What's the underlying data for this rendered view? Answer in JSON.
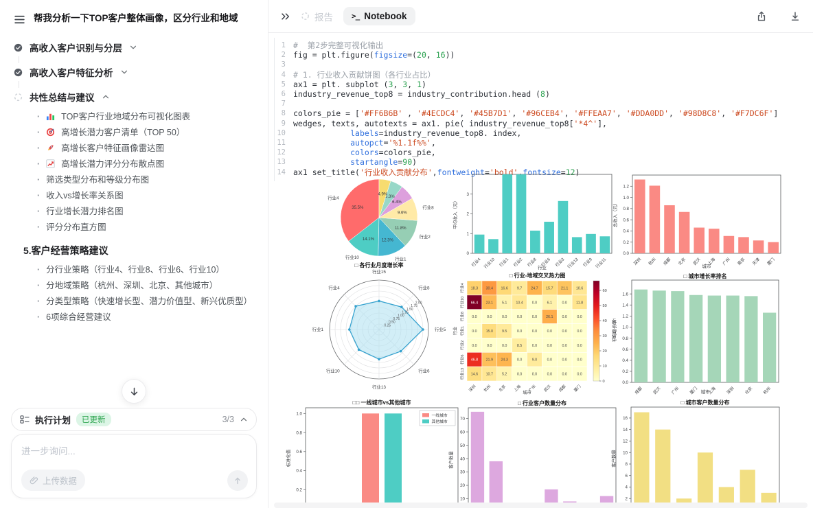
{
  "sidebar": {
    "title": "帮我分析一下TOP客户整体画像，区分行业和地域",
    "tasks": [
      {
        "label": "高收入客户识别与分层",
        "state": "done",
        "chevron": "down"
      },
      {
        "label": "高收入客户特征分析",
        "state": "done",
        "chevron": "down"
      },
      {
        "label": "共性总结与建议",
        "state": "running",
        "chevron": "up"
      }
    ],
    "bullets": [
      {
        "icon": "bar-chart-emoji",
        "text": "TOP客户行业地域分布可视化图表"
      },
      {
        "icon": "target-emoji",
        "text": "高增长潜力客户清单（TOP 50）"
      },
      {
        "icon": "rocket-emoji",
        "text": "高增长客户特征画像雷达图"
      },
      {
        "icon": "chart-up-emoji",
        "text": "高增长潜力评分分布散点图"
      },
      {
        "icon": "",
        "text": "筛选类型分布和等级分布图"
      },
      {
        "icon": "",
        "text": "收入vs增长率关系图"
      },
      {
        "icon": "",
        "text": "行业增长潜力排名图"
      },
      {
        "icon": "",
        "text": "评分分布直方图"
      }
    ],
    "section_heading": "5.客户经营策略建议",
    "strategy_bullets": [
      "分行业策略（行业4、行业8、行业6、行业10）",
      "分地域策略（杭州、深圳、北京、其他城市）",
      "分类型策略（快速增长型、潜力价值型、新兴优质型）",
      "6项综合经营建议"
    ],
    "plan_bar": {
      "label": "执行计划",
      "badge": "已更新",
      "progress": "3/3"
    },
    "composer": {
      "placeholder": "进一步询问...",
      "upload_label": "上传数据"
    }
  },
  "header": {
    "tab_report": "报告",
    "tab_notebook": "Notebook"
  },
  "code": {
    "lines": [
      [
        [
          "c",
          "#  第2步完整可视化输出"
        ]
      ],
      [
        [
          "t",
          "fig = plt.figure("
        ],
        [
          "k",
          "figsize"
        ],
        [
          "t",
          "=("
        ],
        [
          "n",
          "20"
        ],
        [
          "t",
          ", "
        ],
        [
          "n",
          "16"
        ],
        [
          "t",
          "))"
        ]
      ],
      [],
      [
        [
          "c",
          "# 1. 行业收入贡献饼图（各行业占比）"
        ]
      ],
      [
        [
          "t",
          "ax1 = plt. subplot ("
        ],
        [
          "n",
          "3"
        ],
        [
          "t",
          ", "
        ],
        [
          "n",
          "3"
        ],
        [
          "t",
          ", "
        ],
        [
          "n",
          "1"
        ],
        [
          "t",
          ")"
        ]
      ],
      [
        [
          "t",
          "industry_revenue_top8 = industry_contribution.head ("
        ],
        [
          "n",
          "8"
        ],
        [
          "t",
          ")"
        ]
      ],
      [],
      [
        [
          "t",
          "colors_pie = ["
        ],
        [
          "s",
          "'#FF6B6B'"
        ],
        [
          "t",
          " , "
        ],
        [
          "s",
          "'#4ECDC4'"
        ],
        [
          "t",
          ", "
        ],
        [
          "s",
          "'#45B7D1'"
        ],
        [
          "t",
          ", "
        ],
        [
          "s",
          "'#96CEB4'"
        ],
        [
          "t",
          ", "
        ],
        [
          "s",
          "'#FFEAA7'"
        ],
        [
          "t",
          ", "
        ],
        [
          "s",
          "'#DDA0DD'"
        ],
        [
          "t",
          ", "
        ],
        [
          "s",
          "'#98D8C8'"
        ],
        [
          "t",
          ", "
        ],
        [
          "s",
          "'#F7DC6F'"
        ],
        [
          "t",
          "]"
        ]
      ],
      [
        [
          "t",
          "wedges, texts, autotexts = ax1. pie( industry_revenue_top8["
        ],
        [
          "s",
          "'*4^'"
        ],
        [
          "t",
          "],"
        ]
      ],
      [
        [
          "t",
          "            "
        ],
        [
          "k",
          "labels"
        ],
        [
          "t",
          "=industry_revenue_top8. index,"
        ]
      ],
      [
        [
          "t",
          "            "
        ],
        [
          "k",
          "autopct"
        ],
        [
          "t",
          "="
        ],
        [
          "s",
          "'%1.1f%%'"
        ],
        [
          "t",
          ","
        ]
      ],
      [
        [
          "t",
          "            "
        ],
        [
          "k",
          "colors"
        ],
        [
          "t",
          "=colors_pie,"
        ]
      ],
      [
        [
          "t",
          "            "
        ],
        [
          "k",
          "startangle"
        ],
        [
          "t",
          "="
        ],
        [
          "n",
          "90"
        ],
        [
          "t",
          ")"
        ]
      ],
      [
        [
          "t",
          "ax1 set_title("
        ],
        [
          "s",
          "'行业收入贡献分布'"
        ],
        [
          "t",
          ","
        ],
        [
          "k",
          "fontweight"
        ],
        [
          "t",
          "="
        ],
        [
          "s",
          "'bold'"
        ],
        [
          "t",
          ","
        ],
        [
          "k",
          "fontsize"
        ],
        [
          "t",
          "="
        ],
        [
          "n",
          "12"
        ],
        [
          "t",
          ")"
        ]
      ]
    ]
  },
  "chart_data": [
    {
      "id": "industry-revenue-pie",
      "type": "pie",
      "labels": [
        "行业4",
        "行业10",
        "行业1",
        "行业2",
        "行业8",
        "",
        "",
        ""
      ],
      "values": [
        35.5,
        14.1,
        12.3,
        11.8,
        9.6,
        6.4,
        5.3,
        4.9
      ],
      "pct_labels": [
        "35.5%",
        "14.1%",
        "12.3%",
        "11.8%",
        "9.6%",
        "6.4%",
        "5.3%",
        "4.9%"
      ],
      "colors": [
        "#FF6B6B",
        "#4ECDC4",
        "#45B7D1",
        "#96CEB4",
        "#FFEAA7",
        "#DDA0DD",
        "#98D8C8",
        "#F7DC6F"
      ],
      "startangle": 90
    },
    {
      "id": "industry-avg-income-bar",
      "type": "bar",
      "categories": [
        "行业4",
        "行业10",
        "行业1",
        "行业2",
        "行业8",
        "行业6",
        "行业3",
        "行业13",
        "行业9",
        "行业11"
      ],
      "values": [
        0.95,
        0.72,
        4.0,
        4.0,
        1.15,
        1.6,
        2.65,
        0.82,
        0.98,
        0.86
      ],
      "color": "#4ECDC4",
      "ylabel": "平均收入（元）",
      "xlabel": "行业",
      "yticks": [
        "0",
        "1",
        "2",
        "3"
      ],
      "ylim": [
        0,
        4.0
      ]
    },
    {
      "id": "city-total-income-bar",
      "type": "bar",
      "categories": [
        "深圳",
        "杭州",
        "成都",
        "北京",
        "武汉",
        "上海",
        "广州",
        "南京",
        "天津",
        "厦门"
      ],
      "values": [
        1.32,
        1.21,
        0.86,
        0.74,
        0.46,
        0.44,
        0.31,
        0.29,
        0.23,
        0.2
      ],
      "color": "#FA8A84",
      "ylabel": "总收入（元）",
      "xlabel": "城市",
      "yticks": [
        "0.0",
        "0.2",
        "0.4",
        "0.6",
        "0.8",
        "1.0",
        "1.2"
      ],
      "ylim": [
        0,
        1.4
      ]
    },
    {
      "id": "industry-growth-radar",
      "type": "radar",
      "title": "□ 各行业月度增长率",
      "axes": [
        "行业15",
        "行业8",
        "行业5",
        "行业6",
        "行业13",
        "行业10",
        "行业1",
        "行业4"
      ],
      "values": [
        1.3,
        1.45,
        2.0,
        1.4,
        1.35,
        1.3,
        1.35,
        1.5
      ],
      "rticks": [
        "0.25",
        "0.50",
        "0.75",
        "1.00",
        "1.25",
        "1.50",
        "1.75",
        "2.00"
      ],
      "fill": "#ADE0F0",
      "stroke": "#35A2CF"
    },
    {
      "id": "industry-city-heatmap",
      "type": "heatmap",
      "title": "□ 行业-地域交叉热力图",
      "rows": [
        "行业4",
        "行业10",
        "行业8",
        "行业1",
        "行业2",
        "行业6",
        "行业13"
      ],
      "cols": [
        "深圳",
        "杭州",
        "北京",
        "上海",
        "广州",
        "武汉",
        "成都",
        "厦门"
      ],
      "values": [
        [
          18.3,
          30.4,
          16.6,
          9.7,
          24.7,
          15.7,
          21.1,
          10.6
        ],
        [
          66.4,
          23.1,
          5.1,
          10.4,
          0.0,
          6.1,
          0.0,
          11.8
        ],
        [
          0.0,
          0.0,
          0.0,
          0.0,
          0.0,
          26.1,
          0.0,
          0.0
        ],
        [
          0.0,
          15.0,
          9.5,
          0.0,
          0.0,
          0.0,
          0.0,
          0.0
        ],
        [
          0.0,
          0.0,
          0.0,
          8.5,
          0.0,
          0.0,
          0.0,
          0.0
        ],
        [
          46.8,
          21.9,
          24.3,
          0.0,
          9.0,
          0.0,
          0.0,
          0.0
        ],
        [
          14.6,
          10.7,
          5.2,
          0.0,
          0.0,
          0.0,
          0.0,
          0.0
        ]
      ],
      "ylabel": "行业",
      "xlabel": "城市",
      "colorbar_ticks": [
        "0",
        "10",
        "20",
        "30",
        "40",
        "50",
        "60"
      ],
      "colorbar_label": "收入（万元）",
      "colormap": "YlOrRd"
    },
    {
      "id": "city-growth-rank-bar",
      "type": "bar",
      "title": "□ 城市增长率排名",
      "categories": [
        "成都",
        "武汉",
        "广州",
        "厦门",
        "上海",
        "深圳",
        "北京",
        "杭州"
      ],
      "values": [
        1.68,
        1.66,
        1.65,
        1.58,
        1.57,
        1.57,
        1.56,
        1.26
      ],
      "color": "#A5D6B8",
      "ylabel": "平均增长率",
      "xlabel": "城市",
      "yticks": [
        "0.0",
        "0.2",
        "0.4",
        "0.6",
        "0.8",
        "1.0",
        "1.2",
        "1.4",
        "1.6"
      ],
      "ylim": [
        0,
        1.85
      ]
    },
    {
      "id": "tier1-vs-other-bar",
      "type": "grouped-bar",
      "title": "□□ 一线城市vs其他城市",
      "legend": [
        {
          "label": "一线城市",
          "color": "#FA8A84"
        },
        {
          "label": "其他城市",
          "color": "#4ECDC4"
        }
      ],
      "values": [
        1.0,
        1.0
      ],
      "ylabel": "标准化值",
      "yticks": [
        "0.2",
        "0.4",
        "0.6",
        "0.8",
        "1.0"
      ],
      "ylim": [
        0,
        1.06
      ]
    },
    {
      "id": "industry-customer-count-bar",
      "type": "bar",
      "title": "□ 行业客户数量分布",
      "categories": [
        "",
        "",
        "",
        "",
        "",
        "",
        "",
        ""
      ],
      "values": [
        75,
        38,
        5,
        0,
        17,
        8,
        0,
        12
      ],
      "color": "#DDA8DF",
      "ylabel": "客户数量",
      "yticks": [
        "10",
        "20",
        "30",
        "40",
        "50",
        "60",
        "70"
      ],
      "ylim": [
        0,
        78
      ]
    },
    {
      "id": "city-customer-count-bar",
      "type": "bar",
      "title": "□ 城市客户数量分布",
      "categories": [
        "",
        "",
        "",
        "",
        "",
        "",
        ""
      ],
      "values": [
        17,
        14,
        2,
        10,
        4,
        7,
        3
      ],
      "color": "#F2DF83",
      "ylabel": "客户数量",
      "yticks": [
        "2",
        "4",
        "6",
        "8",
        "10",
        "12",
        "14",
        "16"
      ],
      "ylim": [
        0,
        17.9
      ]
    }
  ],
  "colors": {
    "badge_bg": "#dcf5e6",
    "badge_text": "#2da44e",
    "active_tab_bg": "#f1f2f3"
  }
}
